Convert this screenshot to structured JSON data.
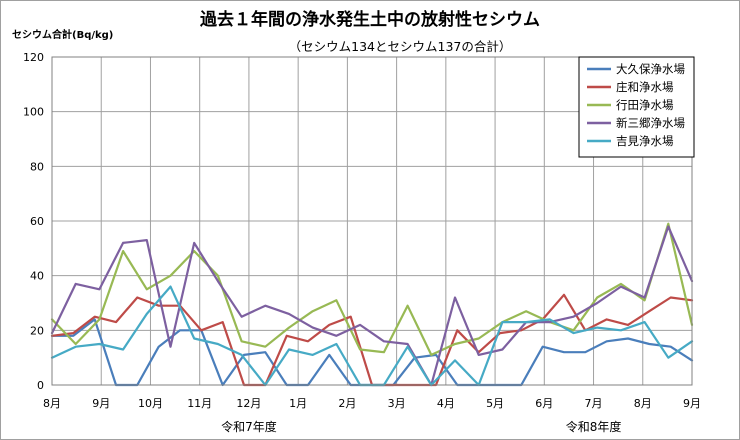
{
  "chart_data": {
    "type": "line",
    "title": "過去１年間の浄水発生土中の放射性セシウム",
    "subtitle": "（セシウム134とセシウム137の合計）",
    "ylabel": "セシウム合計(Bq/kg)",
    "xlabel": "",
    "ylim": [
      0,
      120
    ],
    "yticks": [
      0,
      20,
      40,
      60,
      80,
      100,
      120
    ],
    "x_ticks": [
      "8月",
      "9月",
      "10月",
      "11月",
      "12月",
      "1月",
      "2月",
      "3月",
      "4月",
      "5月",
      "6月",
      "7月",
      "8月",
      "9月"
    ],
    "year_labels": [
      "令和7年度",
      "令和8年度"
    ],
    "grid": true,
    "legend_position": "top-right",
    "series": [
      {
        "name": "大久保浄水場",
        "color": "#4a7ebb",
        "values": [
          18,
          18,
          24,
          0,
          0,
          14,
          20,
          20,
          0,
          11,
          12,
          0,
          0,
          11,
          0,
          0,
          0,
          10,
          11,
          0,
          0,
          0,
          0,
          14,
          12,
          12,
          16,
          17,
          15,
          14,
          9
        ]
      },
      {
        "name": "庄和浄水場",
        "color": "#be4b48",
        "values": [
          18,
          19,
          25,
          23,
          32,
          29,
          29,
          20,
          23,
          0,
          0,
          18,
          16,
          22,
          25,
          0,
          0,
          0,
          0,
          20,
          12,
          19,
          20,
          24,
          33,
          20,
          24,
          22,
          27,
          32,
          31
        ]
      },
      {
        "name": "行田浄水場",
        "color": "#98b954",
        "values": [
          24,
          15,
          24,
          49,
          35,
          40,
          49,
          40,
          16,
          14,
          21,
          27,
          31,
          13,
          12,
          29,
          11,
          15,
          17,
          23,
          27,
          23,
          20,
          32,
          37,
          31,
          59,
          22
        ]
      },
      {
        "name": "新三郷浄水場",
        "color": "#7d60a0",
        "values": [
          19,
          37,
          35,
          52,
          53,
          14,
          52,
          38,
          25,
          29,
          26,
          21,
          18,
          22,
          16,
          15,
          0,
          32,
          11,
          13,
          23,
          23,
          25,
          30,
          36,
          32,
          58,
          38
        ]
      },
      {
        "name": "吉見浄水場",
        "color": "#46aac5",
        "values": [
          10,
          14,
          15,
          13,
          26,
          36,
          17,
          15,
          11,
          0,
          13,
          11,
          15,
          0,
          0,
          14,
          0,
          9,
          0,
          23,
          23,
          24,
          19,
          21,
          20,
          23,
          10,
          16
        ]
      }
    ]
  }
}
